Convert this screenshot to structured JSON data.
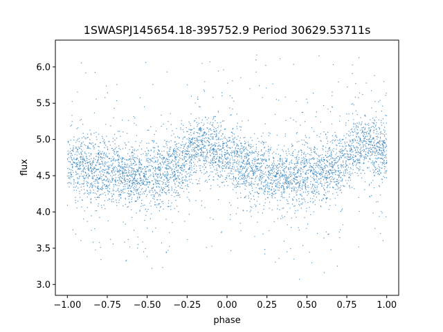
{
  "chart_data": {
    "type": "scatter",
    "title": "1SWASPJ145654.18-395752.9 Period 30629.53711s",
    "xlabel": "phase",
    "ylabel": "flux",
    "xlim": [
      -1.075,
      1.075
    ],
    "ylim": [
      2.85,
      6.37
    ],
    "x_ticks": [
      -1.0,
      -0.75,
      -0.5,
      -0.25,
      0.0,
      0.25,
      0.5,
      0.75,
      1.0
    ],
    "x_tick_labels": [
      "−1.00",
      "−0.75",
      "−0.50",
      "−0.25",
      "0.00",
      "0.25",
      "0.50",
      "0.75",
      "1.00"
    ],
    "y_ticks": [
      3.0,
      3.5,
      4.0,
      4.5,
      5.0,
      5.5,
      6.0
    ],
    "y_tick_labels": [
      "3.0",
      "3.5",
      "4.0",
      "4.5",
      "5.0",
      "5.5",
      "6.0"
    ],
    "grid": false,
    "marker_color": "#1f77b4",
    "x_range": [
      -1.0,
      1.0
    ],
    "y_range": [
      3.0,
      6.25
    ],
    "series": [
      {
        "x": [
          -1.0,
          -0.9,
          -0.8,
          -0.7,
          -0.6,
          -0.5,
          -0.4,
          -0.3,
          -0.25,
          -0.2,
          -0.15,
          -0.1,
          -0.05,
          0.0,
          0.1,
          0.2,
          0.3,
          0.4,
          0.5,
          0.6,
          0.7,
          0.75,
          0.8,
          0.85,
          0.9,
          0.95,
          1.0
        ],
        "y": [
          4.68,
          4.63,
          4.58,
          4.54,
          4.51,
          4.5,
          4.52,
          4.62,
          4.74,
          4.88,
          4.93,
          4.9,
          4.83,
          4.76,
          4.66,
          4.58,
          4.52,
          4.5,
          4.5,
          4.55,
          4.66,
          4.78,
          4.9,
          4.93,
          4.91,
          4.85,
          4.78
        ]
      }
    ]
  }
}
